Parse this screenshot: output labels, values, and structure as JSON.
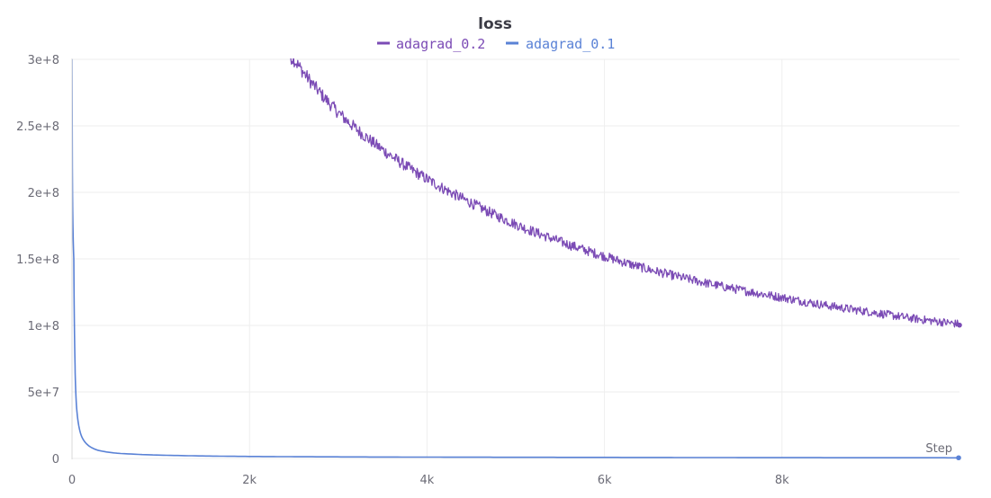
{
  "chart_data": {
    "type": "line",
    "title": "loss",
    "xlabel": "Step",
    "ylabel": "",
    "xlim": [
      0,
      10000
    ],
    "ylim": [
      0,
      300000000
    ],
    "x_ticks": [
      {
        "value": 0,
        "label": "0"
      },
      {
        "value": 2000,
        "label": "2k"
      },
      {
        "value": 4000,
        "label": "4k"
      },
      {
        "value": 6000,
        "label": "6k"
      },
      {
        "value": 8000,
        "label": "8k"
      }
    ],
    "y_ticks": [
      {
        "value": 0,
        "label": "0"
      },
      {
        "value": 50000000,
        "label": "5e+7"
      },
      {
        "value": 100000000,
        "label": "1e+8"
      },
      {
        "value": 150000000,
        "label": "1.5e+8"
      },
      {
        "value": 200000000,
        "label": "2e+8"
      },
      {
        "value": 250000000,
        "label": "2.5e+8"
      },
      {
        "value": 300000000,
        "label": "3e+8"
      }
    ],
    "grid": true,
    "legend_position": "top-center",
    "series": [
      {
        "name": "adagrad_0.2",
        "color": "#7b4bb5",
        "x": [
          2000,
          2500,
          3000,
          3500,
          4000,
          4500,
          5000,
          5500,
          6000,
          6500,
          7000,
          7500,
          8000,
          8500,
          9000,
          9500,
          10000
        ],
        "y": [
          330000000,
          300000000,
          260000000,
          232000000,
          210000000,
          192000000,
          176000000,
          163000000,
          152000000,
          142000000,
          134000000,
          127000000,
          121000000,
          115000000,
          110000000,
          105000000,
          101000000
        ]
      },
      {
        "name": "adagrad_0.1",
        "color": "#5a82d6",
        "x": [
          0,
          20,
          50,
          100,
          200,
          300,
          500,
          1000,
          2000,
          4000,
          6000,
          8000,
          10000
        ],
        "y": [
          300000000,
          150000000,
          40000000,
          18000000,
          9000000,
          6000000,
          4000000,
          2500000,
          1500000,
          1000000,
          800000,
          600000,
          500000
        ]
      }
    ]
  }
}
